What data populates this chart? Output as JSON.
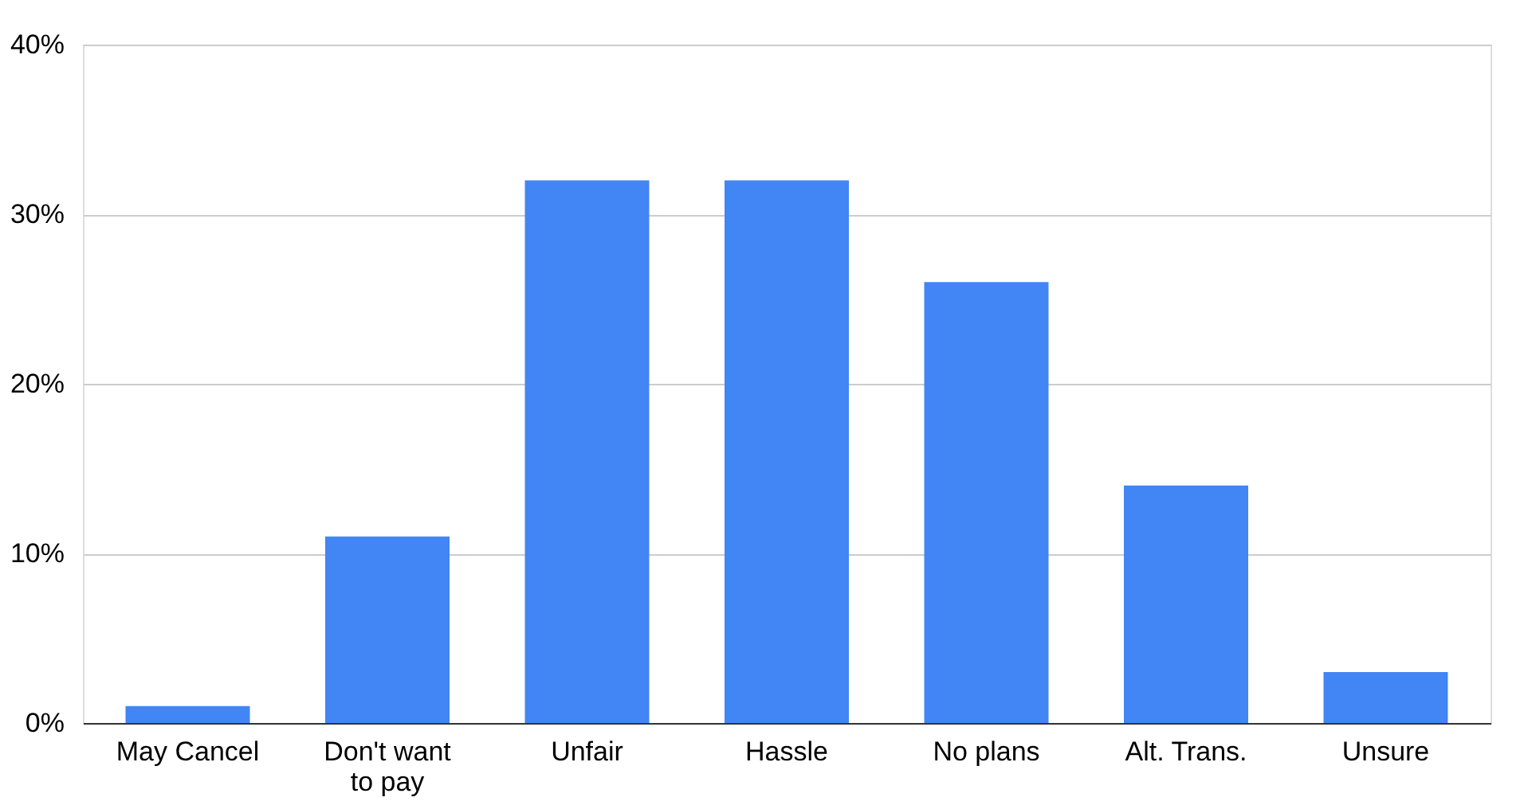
{
  "chart_data": {
    "type": "bar",
    "categories": [
      "May Cancel",
      "Don't want to pay",
      "Unfair",
      "Hassle",
      "No plans",
      "Alt. Trans.",
      "Unsure"
    ],
    "values": [
      1,
      11,
      32,
      32,
      26,
      14,
      3
    ],
    "color": "#4285f4",
    "ylim": [
      0,
      40
    ],
    "yticks": [
      {
        "value": 0,
        "label": "0%"
      },
      {
        "value": 10,
        "label": "10%"
      },
      {
        "value": 20,
        "label": "20%"
      },
      {
        "value": 30,
        "label": "30%"
      },
      {
        "value": 40,
        "label": "40%"
      }
    ],
    "grid": "y"
  }
}
